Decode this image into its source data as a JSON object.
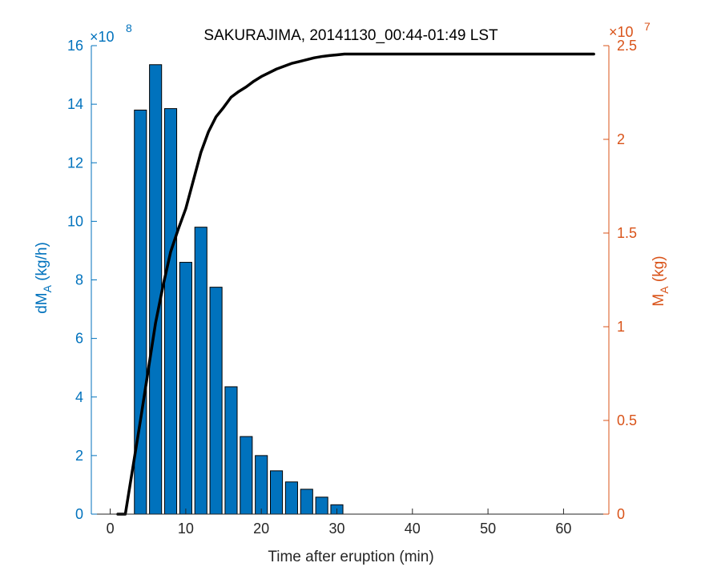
{
  "chart_data": {
    "type": "bar+line",
    "title": "SAKURAJIMA, 20141130_00:44-01:49 LST",
    "xlabel": "Time after eruption (min)",
    "xlim": [
      -2.5,
      66
    ],
    "xticks": [
      "0",
      "10",
      "20",
      "30",
      "40",
      "50",
      "60"
    ],
    "left_axis": {
      "label_main": "dM",
      "label_sub": "A",
      "label_unit": " (kg/h)",
      "exponent_base": "×10",
      "exponent_power": "8",
      "ylim": [
        0,
        16
      ],
      "ticks": [
        "0",
        "2",
        "4",
        "6",
        "8",
        "10",
        "12",
        "14",
        "16"
      ],
      "color": "#0072bd"
    },
    "right_axis": {
      "label_main": "M",
      "label_sub": "A",
      "label_unit": " (kg)",
      "exponent_base": "×10",
      "exponent_power": "7",
      "ylim": [
        0,
        2.5
      ],
      "ticks": [
        "0",
        "0.5",
        "1",
        "1.5",
        "2",
        "2.5"
      ],
      "color": "#d95319"
    },
    "bars": {
      "color": "#0072bd",
      "x": [
        2,
        4,
        6,
        8,
        10,
        12,
        14,
        16,
        18,
        20,
        22,
        24,
        26,
        28,
        30
      ],
      "values": [
        0,
        13.8,
        15.35,
        13.85,
        8.6,
        9.8,
        7.75,
        4.35,
        2.65,
        2.0,
        1.48,
        1.1,
        0.85,
        0.58,
        0.32
      ]
    },
    "line": {
      "color": "#000000",
      "x": [
        1,
        2,
        3,
        4,
        5,
        6,
        7,
        8,
        9,
        10,
        11,
        12,
        13,
        14,
        15,
        16,
        17,
        18,
        19,
        20,
        21,
        22,
        23,
        24,
        25,
        26,
        27,
        28,
        29,
        30,
        31,
        64
      ],
      "y": [
        0,
        0,
        0.25,
        0.5,
        0.76,
        1.02,
        1.22,
        1.4,
        1.52,
        1.63,
        1.78,
        1.93,
        2.04,
        2.12,
        2.17,
        2.225,
        2.255,
        2.28,
        2.31,
        2.335,
        2.355,
        2.375,
        2.39,
        2.405,
        2.415,
        2.425,
        2.435,
        2.442,
        2.447,
        2.451,
        2.455,
        2.455
      ]
    }
  }
}
